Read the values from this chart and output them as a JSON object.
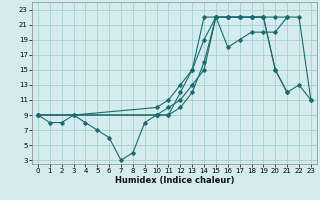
{
  "xlabel": "Humidex (Indice chaleur)",
  "bg_color": "#d4ecee",
  "grid_color": "#a0c8cc",
  "line_color": "#1a6b6b",
  "xlim": [
    -0.5,
    23.5
  ],
  "ylim": [
    2.5,
    24
  ],
  "xticks": [
    0,
    1,
    2,
    3,
    4,
    5,
    6,
    7,
    8,
    9,
    10,
    11,
    12,
    13,
    14,
    15,
    16,
    17,
    18,
    19,
    20,
    21,
    22,
    23
  ],
  "yticks": [
    3,
    5,
    7,
    9,
    11,
    13,
    15,
    17,
    19,
    21,
    23
  ],
  "series": [
    {
      "x": [
        0,
        1,
        2,
        3,
        4,
        5,
        6,
        7,
        8,
        9,
        10,
        11,
        12,
        13,
        14,
        15,
        16,
        17,
        18,
        19,
        20,
        21
      ],
      "y": [
        9,
        8,
        8,
        9,
        8,
        7,
        6,
        3,
        4,
        8,
        9,
        9,
        12,
        15,
        22,
        22,
        22,
        22,
        22,
        22,
        15,
        12
      ]
    },
    {
      "x": [
        0,
        10,
        11,
        12,
        13,
        14,
        15,
        16,
        17,
        18,
        19,
        20,
        21,
        22,
        23
      ],
      "y": [
        9,
        9,
        10,
        11,
        13,
        15,
        22,
        22,
        22,
        22,
        22,
        15,
        12,
        13,
        11
      ]
    },
    {
      "x": [
        0,
        3,
        10,
        11,
        12,
        13,
        14,
        15,
        16,
        17,
        18,
        19,
        20,
        21
      ],
      "y": [
        9,
        9,
        10,
        11,
        13,
        15,
        19,
        22,
        18,
        19,
        20,
        20,
        20,
        22
      ]
    },
    {
      "x": [
        0,
        10,
        11,
        12,
        13,
        14,
        15,
        16,
        17,
        18,
        19,
        20,
        21,
        22,
        23
      ],
      "y": [
        9,
        9,
        9,
        10,
        12,
        16,
        22,
        22,
        22,
        22,
        22,
        22,
        22,
        22,
        11
      ]
    }
  ]
}
